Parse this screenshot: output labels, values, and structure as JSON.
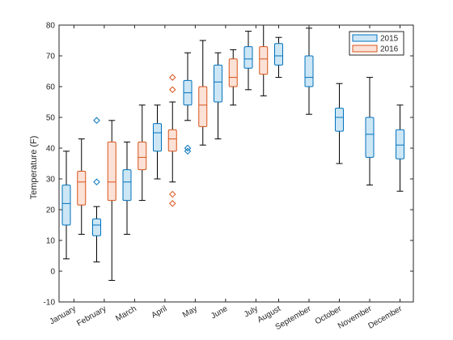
{
  "chart_data": {
    "type": "boxplot",
    "title": "",
    "xlabel": "",
    "ylabel": "Temperature (F)",
    "ylim": [
      -10,
      80
    ],
    "yticks": [
      -10,
      0,
      10,
      20,
      30,
      40,
      50,
      60,
      70,
      80
    ],
    "grid": false,
    "legend_position": "top-right",
    "categories": [
      "January",
      "February",
      "March",
      "April",
      "May",
      "June",
      "July",
      "August",
      "September",
      "October",
      "November",
      "December"
    ],
    "series": [
      {
        "name": "2015",
        "color": "#0072BD",
        "fill": "#CCE6F5",
        "boxes": [
          {
            "month": "January",
            "whisker_low": 4,
            "q1": 15,
            "median": 22,
            "q3": 28,
            "whisker_high": 39,
            "outliers": []
          },
          {
            "month": "February",
            "whisker_low": 3,
            "q1": 11.5,
            "median": 15,
            "q3": 17,
            "whisker_high": 21,
            "outliers": [
              29,
              49
            ]
          },
          {
            "month": "March",
            "whisker_low": 12,
            "q1": 23,
            "median": 29,
            "q3": 33,
            "whisker_high": 42,
            "outliers": []
          },
          {
            "month": "April",
            "whisker_low": 30,
            "q1": 39,
            "median": 45,
            "q3": 48,
            "whisker_high": 54,
            "outliers": []
          },
          {
            "month": "May",
            "whisker_low": 49,
            "q1": 54,
            "median": 58,
            "q3": 62,
            "whisker_high": 71,
            "outliers": [
              39,
              40
            ]
          },
          {
            "month": "June",
            "whisker_low": 43,
            "q1": 55,
            "median": 61.5,
            "q3": 67,
            "whisker_high": 71,
            "outliers": []
          },
          {
            "month": "July",
            "whisker_low": 59,
            "q1": 66,
            "median": 69,
            "q3": 73,
            "whisker_high": 78,
            "outliers": []
          },
          {
            "month": "August",
            "whisker_low": 63,
            "q1": 67,
            "median": 70,
            "q3": 74,
            "whisker_high": 76,
            "outliers": []
          },
          {
            "month": "September",
            "whisker_low": 51,
            "q1": 60,
            "median": 63,
            "q3": 70,
            "whisker_high": 79,
            "outliers": []
          },
          {
            "month": "October",
            "whisker_low": 35,
            "q1": 45.5,
            "median": 50,
            "q3": 53,
            "whisker_high": 61,
            "outliers": []
          },
          {
            "month": "November",
            "whisker_low": 28,
            "q1": 37,
            "median": 44.5,
            "q3": 50,
            "whisker_high": 63,
            "outliers": []
          },
          {
            "month": "December",
            "whisker_low": 26,
            "q1": 36.5,
            "median": 41,
            "q3": 46,
            "whisker_high": 54,
            "outliers": []
          }
        ]
      },
      {
        "name": "2016",
        "color": "#D95319",
        "fill": "#FBE1D6",
        "boxes": [
          {
            "month": "January",
            "whisker_low": 12,
            "q1": 21.5,
            "median": 29,
            "q3": 32.5,
            "whisker_high": 43,
            "outliers": []
          },
          {
            "month": "February",
            "whisker_low": -3,
            "q1": 23,
            "median": 29,
            "q3": 42,
            "whisker_high": 49,
            "outliers": []
          },
          {
            "month": "March",
            "whisker_low": 23,
            "q1": 33,
            "median": 37,
            "q3": 42,
            "whisker_high": 54,
            "outliers": []
          },
          {
            "month": "April",
            "whisker_low": 29,
            "q1": 39,
            "median": 43,
            "q3": 46,
            "whisker_high": 55,
            "outliers": [
              22,
              25,
              59,
              63
            ]
          },
          {
            "month": "May",
            "whisker_low": 41,
            "q1": 47,
            "median": 54,
            "q3": 60,
            "whisker_high": 75,
            "outliers": []
          },
          {
            "month": "June",
            "whisker_low": 54,
            "q1": 60,
            "median": 63,
            "q3": 69,
            "whisker_high": 72,
            "outliers": []
          },
          {
            "month": "July",
            "whisker_low": 57,
            "q1": 64,
            "median": 69,
            "q3": 73,
            "whisker_high": 80,
            "outliers": []
          }
        ]
      }
    ]
  }
}
